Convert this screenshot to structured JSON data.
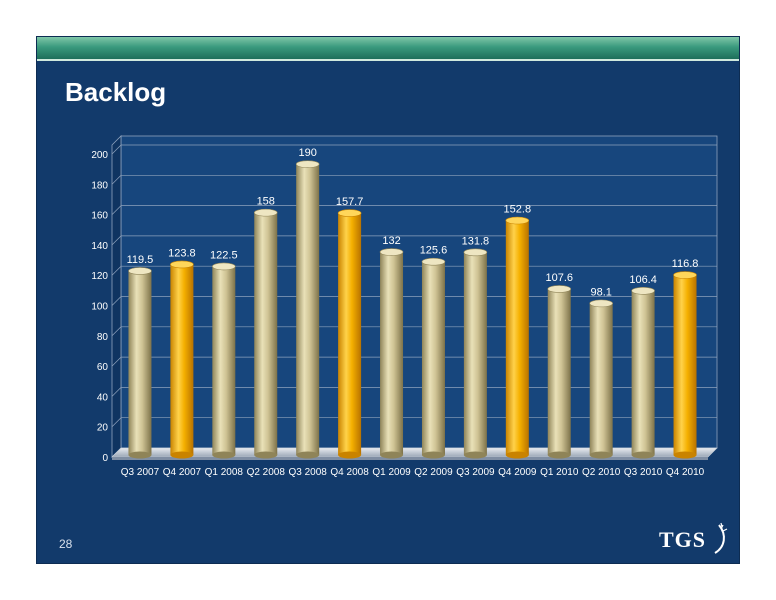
{
  "slide": {
    "title": "Backlog",
    "page_number": "28",
    "logo_text": "TGS"
  },
  "chart_data": {
    "type": "bar",
    "title": "",
    "xlabel": "",
    "ylabel": "",
    "ylim": [
      0,
      200
    ],
    "yticks": [
      0,
      20,
      40,
      60,
      80,
      100,
      120,
      140,
      160,
      180,
      200
    ],
    "grid": true,
    "categories": [
      "Q3 2007",
      "Q4 2007",
      "Q1 2008",
      "Q2 2008",
      "Q3 2008",
      "Q4 2008",
      "Q1 2009",
      "Q2 2009",
      "Q3 2009",
      "Q4 2009",
      "Q1 2010",
      "Q2 2010",
      "Q3 2010",
      "Q4 2010"
    ],
    "values": [
      119.5,
      123.8,
      122.5,
      158,
      190,
      157.7,
      132,
      125.6,
      131.8,
      152.8,
      107.6,
      98.1,
      106.4,
      116.8
    ],
    "value_labels": [
      "119.5",
      "123.8",
      "122.5",
      "158",
      "190",
      "157.7",
      "132",
      "125.6",
      "131.8",
      "152.8",
      "107.6",
      "98.1",
      "106.4",
      "116.8"
    ],
    "highlight": [
      false,
      true,
      false,
      false,
      false,
      true,
      false,
      false,
      false,
      true,
      false,
      false,
      false,
      true
    ],
    "colors": {
      "normal": "#c8bd8e",
      "highlight": "#f5b400",
      "background": "#123a6b",
      "band": "#2f8f74"
    }
  }
}
